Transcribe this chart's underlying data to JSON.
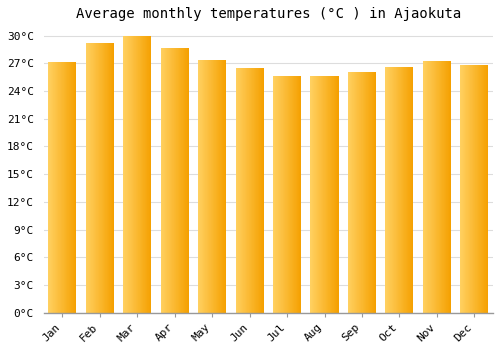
{
  "months": [
    "Jan",
    "Feb",
    "Mar",
    "Apr",
    "May",
    "Jun",
    "Jul",
    "Aug",
    "Sep",
    "Oct",
    "Nov",
    "Dec"
  ],
  "values": [
    27.1,
    29.2,
    30.0,
    28.7,
    27.3,
    26.5,
    25.6,
    25.6,
    26.1,
    26.6,
    27.2,
    26.8
  ],
  "bar_color_left": "#FFD060",
  "bar_color_right": "#F5A000",
  "bar_color_mid": "#FDB827",
  "title": "Average monthly temperatures (°C ) in Ajaokuta",
  "ylim": [
    0,
    31
  ],
  "ytick_step": 3,
  "background_color": "#FFFFFF",
  "grid_color": "#DDDDDD",
  "title_fontsize": 10,
  "tick_fontsize": 8,
  "font_family": "monospace"
}
